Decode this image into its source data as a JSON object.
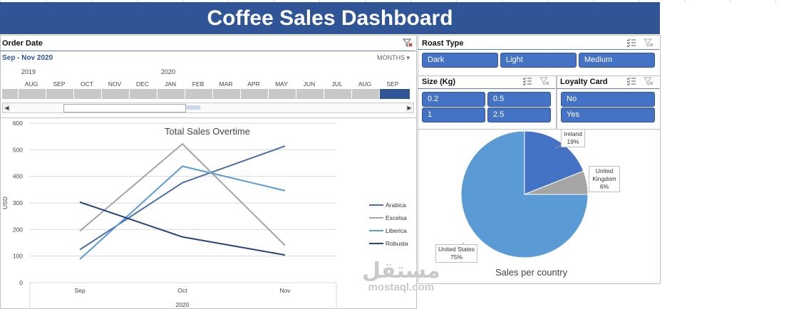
{
  "header": {
    "title": "Coffee Sales Dashboard"
  },
  "timeline": {
    "label": "Order Date",
    "range": "Sep - Nov 2020",
    "level": "MONTHS",
    "years": [
      {
        "label": "2019"
      },
      {
        "label": "2020"
      }
    ],
    "months": [
      "AUG",
      "SEP",
      "OCT",
      "NOV",
      "DEC",
      "JAN",
      "FEB",
      "MAR",
      "APR",
      "MAY",
      "JUN",
      "JUL",
      "AUG",
      "SEP"
    ],
    "selected_index": 13
  },
  "roast": {
    "label": "Roast Type",
    "items": [
      "Dark",
      "Light",
      "Medium"
    ]
  },
  "size": {
    "label": "Size (Kg)",
    "items": [
      "0.2",
      "0.5",
      "1",
      "2.5"
    ]
  },
  "loyalty": {
    "label": "Loyalty Card",
    "items": [
      "No",
      "Yes"
    ]
  },
  "colors": {
    "header": "#2f5597",
    "button": "#4472c4",
    "arabica": "#4a6fa5",
    "excelsa": "#a5a5a5",
    "liberica": "#5b9bd5",
    "robusta": "#264478"
  },
  "chart_data": [
    {
      "type": "line",
      "title": "Total Sales Overtime",
      "ylabel": "USD",
      "x_group_label": "2020",
      "categories": [
        "Sep",
        "Oct",
        "Nov"
      ],
      "ylim": [
        0,
        600
      ],
      "yticks": [
        0,
        100,
        200,
        300,
        400,
        500,
        600
      ],
      "grid": true,
      "legend": "right",
      "series": [
        {
          "name": "Arabica",
          "values": [
            124,
            376,
            514
          ],
          "color": "#4a6fa5"
        },
        {
          "name": "Excelsa",
          "values": [
            194,
            522,
            140
          ],
          "color": "#a5a5a5"
        },
        {
          "name": "Liberica",
          "values": [
            88,
            438,
            346
          ],
          "color": "#5b9bd5"
        },
        {
          "name": "Robusta",
          "values": [
            303,
            172,
            104
          ],
          "color": "#264478"
        }
      ]
    },
    {
      "type": "pie",
      "title": "Sales per country",
      "slices": [
        {
          "label": "Ireland",
          "value": 19,
          "pct": "19%",
          "color": "#4472c4"
        },
        {
          "label": "United Kingdom",
          "value": 6,
          "pct": "6%",
          "color": "#a5a5a5"
        },
        {
          "label": "United States",
          "value": 75,
          "pct": "75%",
          "color": "#5b9bd5"
        }
      ]
    }
  ],
  "watermark": {
    "ar": "مستقل",
    "en": "mostaql.com"
  }
}
